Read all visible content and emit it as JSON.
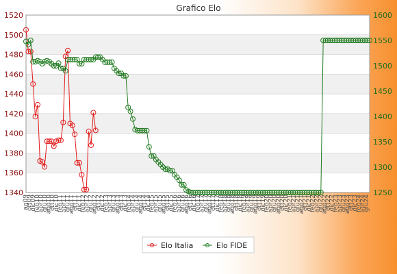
{
  "chart_data": {
    "type": "line",
    "title": "Grafico Elo",
    "left_axis": {
      "ticks": [
        1340,
        1360,
        1380,
        1400,
        1420,
        1440,
        1460,
        1480,
        1500,
        1520
      ],
      "ylim": [
        1340,
        1520
      ]
    },
    "right_axis": {
      "ticks": [
        1250,
        1300,
        1350,
        1400,
        1450,
        1500,
        1550,
        1600
      ],
      "ylim": [
        1250,
        1600
      ]
    },
    "grid": "horizontal bands",
    "legend_position": "bottom",
    "colors": {
      "italia": "#e11a1a",
      "fide": "#1e7a1e"
    },
    "x_tick_labels": [
      "ag09",
      "ott09",
      "dic09",
      "feb10",
      "apr10",
      "giu10",
      "ago10",
      "ott10",
      "dic10",
      "feb11",
      "apr11",
      "giu11",
      "ago11",
      "ott11",
      "dic11",
      "feb12",
      "apr12",
      "giu12",
      "ago12",
      "ott12",
      "dic12",
      "feb13",
      "apr13",
      "giu13",
      "ago13",
      "ott13",
      "dic13",
      "feb14",
      "apr14",
      "giu14",
      "ago14",
      "ott14",
      "dic14",
      "feb15",
      "apr15",
      "giu15",
      "ago15",
      "ott15",
      "dic15",
      "feb16",
      "apr16",
      "giu16",
      "ago16",
      "ott16",
      "dic16",
      "feb17",
      "apr17",
      "giu17",
      "ago17",
      "ott17",
      "dic17",
      "feb18",
      "apr18",
      "giu18",
      "ago18",
      "ott18",
      "dic18",
      "feb19",
      "apr19",
      "giu19",
      "ago19",
      "ott19",
      "dic19",
      "feb20",
      "apr20",
      "giu20",
      "ago20",
      "ott20",
      "dic20",
      "feb21",
      "apr21",
      "giu21",
      "ago21",
      "ott21",
      "dic21",
      "feb22",
      "apr22",
      "giu22",
      "ago22",
      "ott22",
      "dic22",
      "feb23",
      "apr23",
      "giu23",
      "ago23",
      "ott23",
      "dic23",
      "feb24",
      "apr24",
      "giu24"
    ],
    "series": [
      {
        "name": "Elo Italia",
        "axis": "left",
        "values": [
          1505,
          1483,
          1483,
          1450,
          1417,
          1429,
          1372,
          1371,
          1366,
          1392,
          1392,
          1392,
          1387,
          1392,
          1393,
          1393,
          1411,
          1478,
          1484,
          1410,
          1408,
          1399,
          1370,
          1370,
          1358,
          1343,
          1343,
          1402,
          1388,
          1421,
          1403
        ]
      },
      {
        "name": "Elo FIDE",
        "axis": "right",
        "values": [
          1548,
          1542,
          1550,
          1508,
          1508,
          1510,
          1508,
          1504,
          1508,
          1510,
          1508,
          1504,
          1500,
          1500,
          1505,
          1495,
          1495,
          1490,
          1512,
          1512,
          1512,
          1512,
          1512,
          1504,
          1504,
          1512,
          1512,
          1512,
          1512,
          1512,
          1517,
          1517,
          1517,
          1512,
          1507,
          1507,
          1507,
          1507,
          1495,
          1490,
          1485,
          1485,
          1480,
          1480,
          1418,
          1410,
          1395,
          1374,
          1372,
          1372,
          1372,
          1372,
          1372,
          1340,
          1322,
          1322,
          1315,
          1310,
          1305,
          1300,
          1296,
          1296,
          1293,
          1293,
          1285,
          1280,
          1274,
          1265,
          1265,
          1255,
          1252,
          1250,
          1250,
          1250,
          1250,
          1250,
          1250,
          1250,
          1250,
          1250,
          1250,
          1250,
          1250,
          1250,
          1250,
          1250,
          1250,
          1250,
          1250,
          1250,
          1250,
          1250,
          1250,
          1250,
          1250,
          1250,
          1250,
          1250,
          1250,
          1250,
          1250,
          1250,
          1250,
          1250,
          1250,
          1250,
          1250,
          1250,
          1250,
          1250,
          1250,
          1250,
          1250,
          1250,
          1250,
          1250,
          1250,
          1250,
          1250,
          1250,
          1250,
          1250,
          1250,
          1250,
          1250,
          1250,
          1250,
          1250,
          1550,
          1550,
          1550,
          1550,
          1550,
          1550,
          1550,
          1550,
          1550,
          1550,
          1550,
          1550,
          1550,
          1550,
          1550,
          1550,
          1550,
          1550,
          1550,
          1550,
          1550
        ]
      }
    ]
  }
}
